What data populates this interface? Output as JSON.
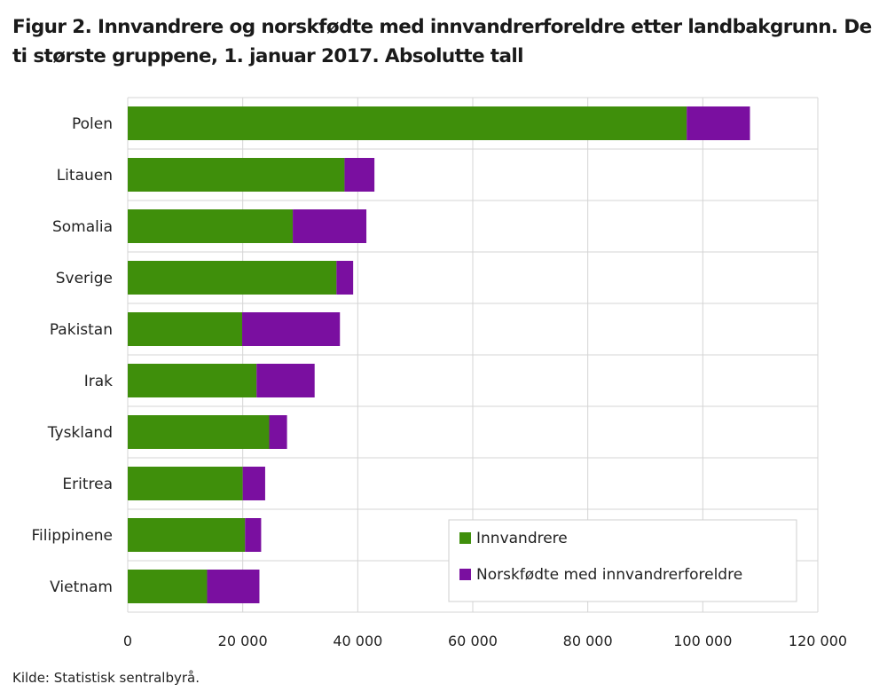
{
  "title": "Figur 2. Innvandrere og norskfødte med innvandrerforeldre etter landbakgrunn. De ti største gruppene, 1. januar 2017. Absolutte tall",
  "source": "Kilde: Statistisk sentralbyrå.",
  "chart_data": {
    "type": "bar",
    "orientation": "horizontal",
    "stacked": true,
    "title": "Figur 2. Innvandrere og norskfødte med innvandrerforeldre etter landbakgrunn. De ti største gruppene, 1. januar 2017. Absolutte tall",
    "categories": [
      "Polen",
      "Litauen",
      "Somalia",
      "Sverige",
      "Pakistan",
      "Irak",
      "Tyskland",
      "Eritrea",
      "Filippinene",
      "Vietnam"
    ],
    "series": [
      {
        "name": "Innvandrere",
        "color": "#3f8f0b",
        "values": [
          97200,
          37700,
          28700,
          36300,
          19900,
          22400,
          24600,
          20000,
          20400,
          13800
        ]
      },
      {
        "name": "Norskfødte med innvandrerforeldre",
        "color": "#7a0fa0",
        "values": [
          11000,
          5200,
          12800,
          2900,
          17000,
          10100,
          3100,
          3900,
          2800,
          9100
        ]
      }
    ],
    "xlim": [
      0,
      120000
    ],
    "xticks": [
      0,
      20000,
      40000,
      60000,
      80000,
      100000,
      120000
    ],
    "xtick_labels": [
      "0",
      "20 000",
      "40 000",
      "60 000",
      "80 000",
      "100 000",
      "120 000"
    ],
    "grid": true,
    "legend_position": "bottom-right"
  }
}
